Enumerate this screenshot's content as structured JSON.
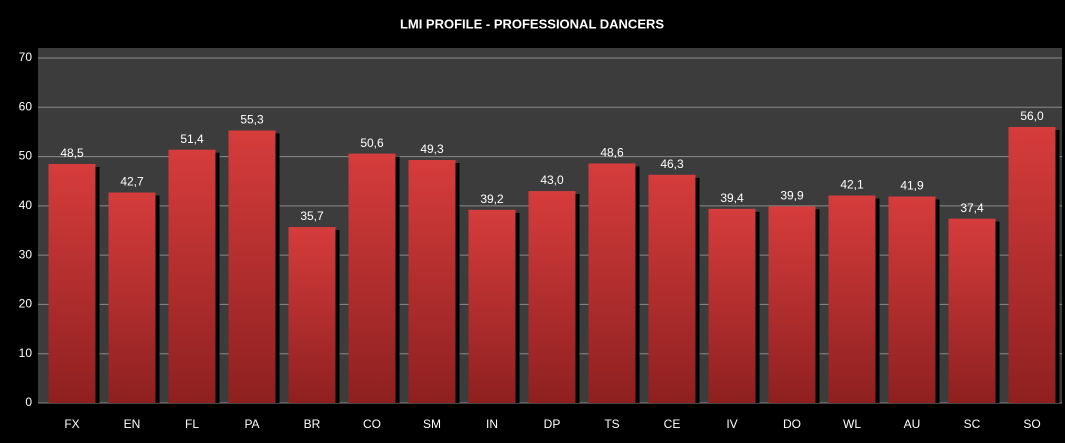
{
  "chart_data": {
    "type": "bar",
    "title": "LMI PROFILE - PROFESSIONAL DANCERS",
    "categories": [
      "FX",
      "EN",
      "FL",
      "PA",
      "BR",
      "CO",
      "SM",
      "IN",
      "DP",
      "TS",
      "CE",
      "IV",
      "DO",
      "WL",
      "AU",
      "SC",
      "SO"
    ],
    "values": [
      48.5,
      42.7,
      51.4,
      55.3,
      35.7,
      50.6,
      49.3,
      39.2,
      43.0,
      48.6,
      46.3,
      39.4,
      39.9,
      42.1,
      41.9,
      37.4,
      56.0
    ],
    "value_labels": [
      "48,5",
      "42,7",
      "51,4",
      "55,3",
      "35,7",
      "50,6",
      "49,3",
      "39,2",
      "43,0",
      "48,6",
      "46,3",
      "39,4",
      "39,9",
      "42,1",
      "41,9",
      "37,4",
      "56,0"
    ],
    "color": "#c83232",
    "ylim": [
      0,
      70
    ],
    "yticks": [
      0,
      10,
      20,
      30,
      40,
      50,
      60,
      70
    ],
    "grid": true
  }
}
